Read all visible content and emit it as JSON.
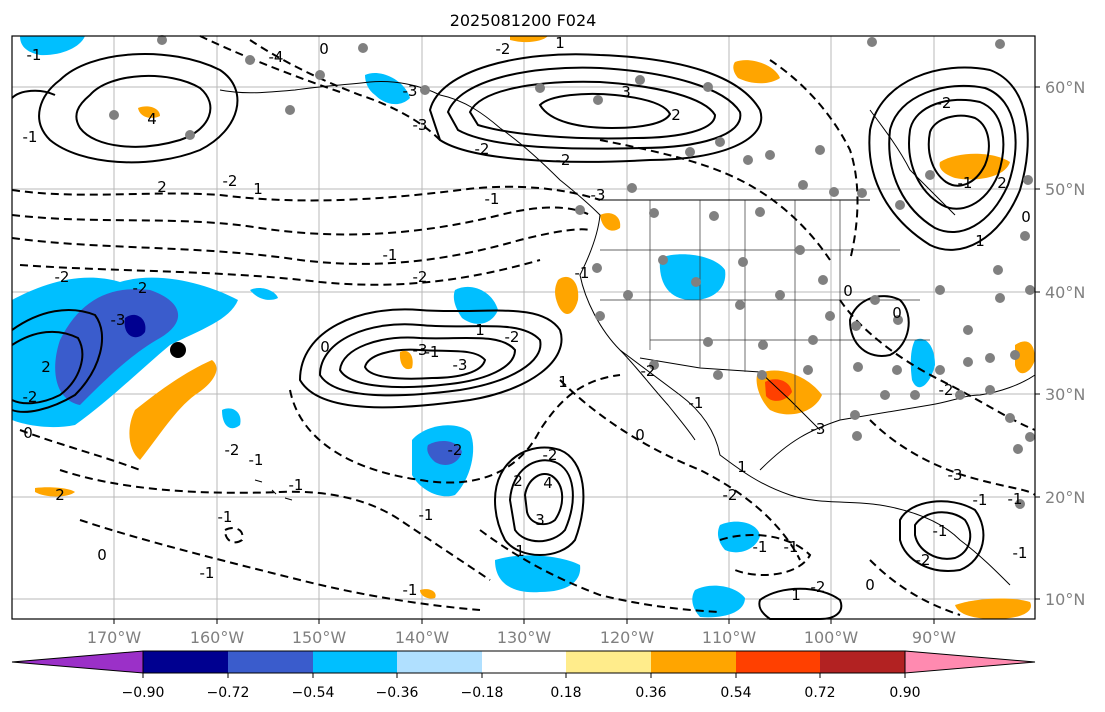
{
  "title": "2025081200 F024",
  "longitude_labels": [
    "170°W",
    "160°W",
    "150°W",
    "140°W",
    "130°W",
    "120°W",
    "110°W",
    "100°W",
    "90°W"
  ],
  "latitude_labels": [
    "60°N",
    "50°N",
    "40°N",
    "30°N",
    "20°N",
    "10°N"
  ],
  "colorbar": {
    "tick_labels": [
      "−0.90",
      "−0.72",
      "−0.54",
      "−0.36",
      "−0.18",
      "0.18",
      "0.36",
      "0.54",
      "0.72",
      "0.90"
    ],
    "colors": [
      "#9b30c8",
      "#000090",
      "#3a5ccc",
      "#00bfff",
      "#b0e0ff",
      "#ffffff",
      "#ffec8b",
      "#ffa500",
      "#ff4000",
      "#b22222",
      "#ff8ab0"
    ]
  },
  "contour_labels": [
    "4",
    "-3",
    "2",
    "-2",
    "0",
    "-1",
    "-1",
    "2",
    "-2",
    "0",
    "-1",
    "-2",
    "-1",
    "4",
    "3",
    "-1",
    "-1",
    "-2",
    "-3",
    "-1",
    "-2",
    "1",
    "-3",
    "-2",
    "-1",
    "0",
    "-1",
    "-2",
    "2",
    "1",
    "3",
    "2",
    "1",
    "-3",
    "-2",
    "-2",
    "-3",
    "-4",
    "-2",
    "1",
    "-3",
    "0",
    "-1",
    "-1",
    "-1",
    "-2",
    "2",
    "-2",
    "0",
    "-1",
    "-3",
    "-2",
    "-1",
    "2",
    "0",
    "1",
    "0",
    "0",
    "-2",
    "-3",
    "-1",
    "-2",
    "-1",
    "-2",
    "1",
    "1",
    "0",
    "-2",
    "1",
    "-1",
    "-2",
    "-1",
    "-1",
    "-1"
  ],
  "legend_colors": {
    "contour_line": "#000000",
    "station_dot": "#808080",
    "marker": "#000000"
  }
}
